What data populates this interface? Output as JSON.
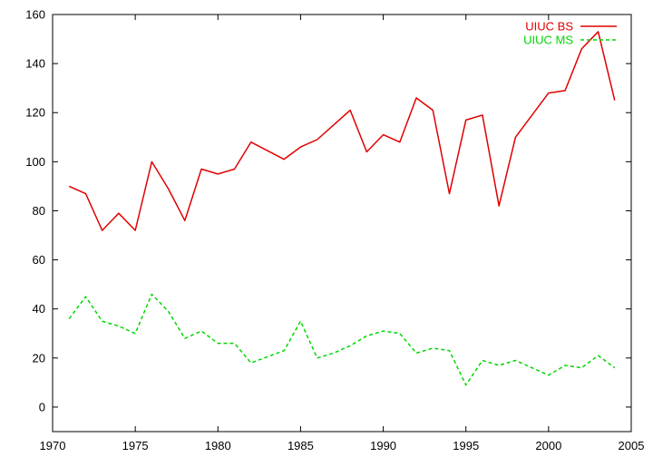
{
  "chart_data": {
    "type": "line",
    "title": "",
    "xlabel": "",
    "ylabel": "",
    "xlim": [
      1970,
      2005
    ],
    "ylim": [
      -10,
      160
    ],
    "xticks": [
      1970,
      1975,
      1980,
      1985,
      1990,
      1995,
      2000,
      2005
    ],
    "yticks": [
      0,
      20,
      40,
      60,
      80,
      100,
      120,
      140,
      160
    ],
    "grid": false,
    "legend_position": "top-right",
    "x": [
      1971,
      1972,
      1973,
      1974,
      1975,
      1976,
      1977,
      1978,
      1979,
      1980,
      1981,
      1982,
      1983,
      1984,
      1985,
      1986,
      1987,
      1988,
      1989,
      1990,
      1991,
      1992,
      1993,
      1994,
      1995,
      1996,
      1997,
      1998,
      1999,
      2000,
      2001,
      2002,
      2003,
      2004
    ],
    "series": [
      {
        "name": "UIUC BS",
        "color": "#e00000",
        "dash": "solid",
        "values": [
          90,
          87,
          72,
          79,
          72,
          100,
          89,
          76,
          97,
          95,
          97,
          108,
          104.5,
          101,
          106,
          109,
          115,
          121,
          104,
          111,
          108,
          126,
          121,
          87,
          117,
          119,
          82,
          110,
          119,
          128,
          129,
          146,
          153,
          125
        ]
      },
      {
        "name": "UIUC MS",
        "color": "#00d800",
        "dash": "dashed",
        "values": [
          36,
          45,
          35,
          33,
          30,
          46,
          39,
          28,
          31,
          26,
          26,
          18,
          20.5,
          23,
          35,
          20,
          22,
          25,
          29,
          31,
          30,
          22,
          24,
          23,
          9,
          19,
          17,
          19,
          16,
          13,
          17,
          16,
          21,
          16
        ]
      }
    ]
  }
}
